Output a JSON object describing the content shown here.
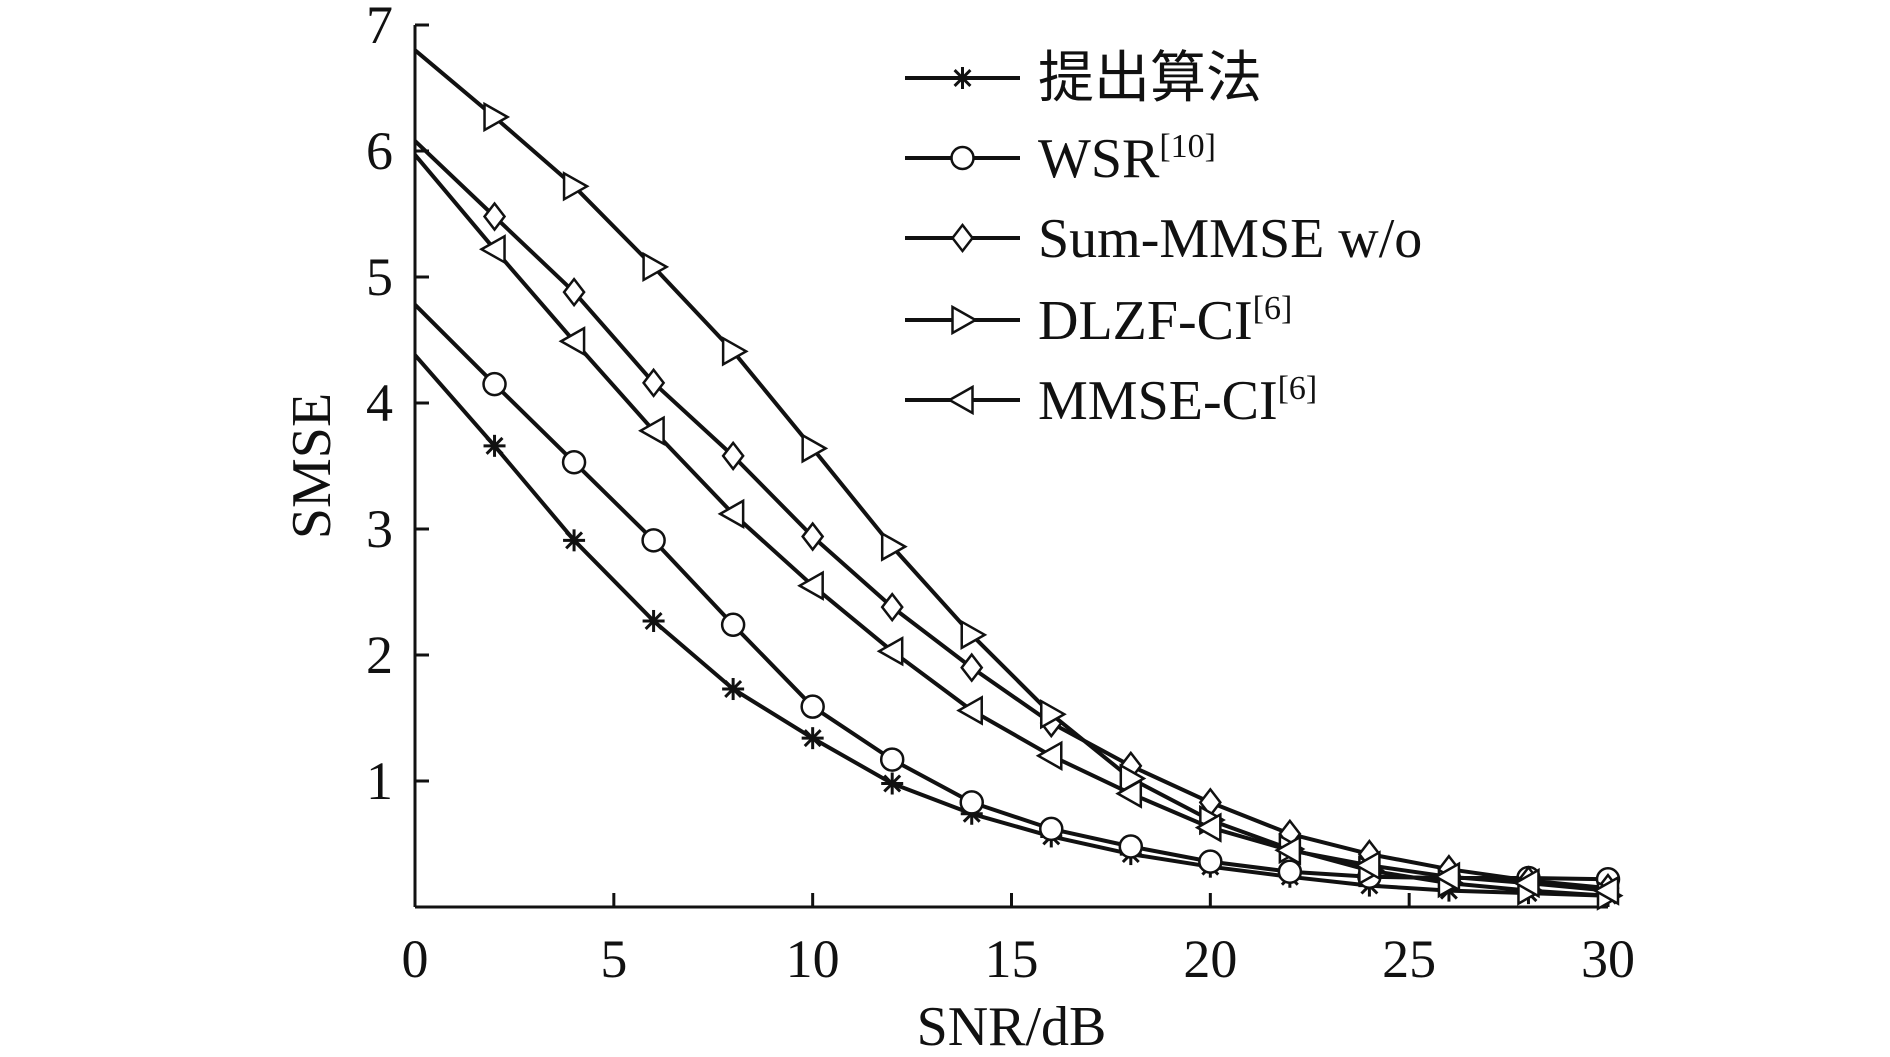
{
  "chart_data": {
    "type": "line",
    "title": "",
    "xlabel": "SNR/dB",
    "ylabel": "SMSE",
    "xlim": [
      0,
      30
    ],
    "ylim": [
      0,
      7
    ],
    "xticks": [
      0,
      5,
      10,
      15,
      20,
      25,
      30
    ],
    "xtick_labels": [
      "0",
      "5",
      "10",
      "15",
      "20",
      "25",
      "30"
    ],
    "yticks": [
      1,
      2,
      3,
      4,
      5,
      6,
      7
    ],
    "ytick_labels": [
      "1",
      "2",
      "3",
      "4",
      "5",
      "6",
      "7"
    ],
    "grid": false,
    "legend_position": "top-right",
    "series": [
      {
        "name": "提出算法",
        "ref": "",
        "marker": "star",
        "x": [
          0,
          2,
          4,
          6,
          8,
          10,
          12,
          14,
          16,
          18,
          20,
          22,
          24,
          26,
          28,
          30
        ],
        "y": [
          4.38,
          3.66,
          2.91,
          2.27,
          1.73,
          1.34,
          0.98,
          0.74,
          0.56,
          0.42,
          0.32,
          0.24,
          0.17,
          0.13,
          0.11,
          0.09
        ]
      },
      {
        "name": "WSR",
        "ref": "[10]",
        "marker": "circle",
        "x": [
          0,
          2,
          4,
          6,
          8,
          10,
          12,
          14,
          16,
          18,
          20,
          22,
          24,
          26,
          28,
          30
        ],
        "y": [
          4.78,
          4.15,
          3.53,
          2.91,
          2.24,
          1.59,
          1.17,
          0.83,
          0.62,
          0.48,
          0.36,
          0.28,
          0.24,
          0.23,
          0.23,
          0.22
        ]
      },
      {
        "name": "Sum-MMSE w/o",
        "ref": "",
        "marker": "diamond",
        "x": [
          0,
          2,
          4,
          6,
          8,
          10,
          12,
          14,
          16,
          18,
          20,
          22,
          24,
          26,
          28,
          30
        ],
        "y": [
          6.08,
          5.48,
          4.88,
          4.16,
          3.58,
          2.94,
          2.38,
          1.9,
          1.46,
          1.12,
          0.83,
          0.58,
          0.42,
          0.3,
          0.21,
          0.15
        ]
      },
      {
        "name": "DLZF-CI",
        "ref": "[6]",
        "marker": "triangle-right",
        "x": [
          0,
          2,
          4,
          6,
          8,
          10,
          12,
          14,
          16,
          18,
          20,
          22,
          24,
          26,
          28,
          30
        ],
        "y": [
          6.8,
          6.27,
          5.72,
          5.08,
          4.41,
          3.64,
          2.86,
          2.16,
          1.53,
          1.02,
          0.69,
          0.46,
          0.29,
          0.19,
          0.13,
          0.09
        ]
      },
      {
        "name": "MMSE-CI",
        "ref": "[6]",
        "marker": "triangle-left",
        "x": [
          0,
          2,
          4,
          6,
          8,
          10,
          12,
          14,
          16,
          18,
          20,
          22,
          24,
          26,
          28,
          30
        ],
        "y": [
          5.97,
          5.22,
          4.49,
          3.78,
          3.12,
          2.55,
          2.03,
          1.56,
          1.2,
          0.9,
          0.63,
          0.45,
          0.33,
          0.24,
          0.19,
          0.13
        ]
      }
    ]
  }
}
